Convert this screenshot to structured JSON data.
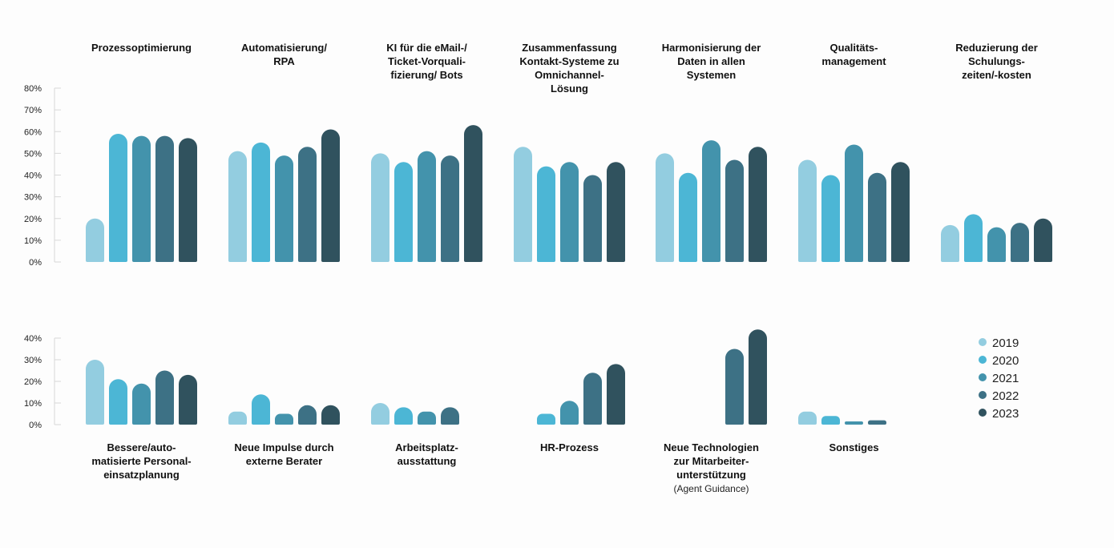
{
  "chart_data": [
    {
      "type": "bar",
      "series_labels": [
        "2019",
        "2020",
        "2021",
        "2022",
        "2023"
      ],
      "colors": [
        "#93cde0",
        "#4cb6d5",
        "#4393ac",
        "#3d7185",
        "#30525e"
      ],
      "ylim": [
        0,
        80
      ],
      "yticks": [
        0,
        10,
        20,
        30,
        40,
        50,
        60,
        70,
        80
      ],
      "ytick_labels": [
        "0%",
        "10%",
        "20%",
        "30%",
        "40%",
        "50%",
        "60%",
        "70%",
        "80%"
      ],
      "categories": [
        {
          "title": [
            "Prozessoptimierung"
          ],
          "values": [
            20,
            59,
            58,
            58,
            57
          ]
        },
        {
          "title": [
            "Automatisierung/",
            "RPA"
          ],
          "values": [
            51,
            55,
            49,
            53,
            61
          ]
        },
        {
          "title": [
            "KI für die eMail-/",
            "Ticket-Vorquali-",
            "fizierung/ Bots"
          ],
          "values": [
            50,
            46,
            51,
            49,
            63
          ]
        },
        {
          "title": [
            "Zusammenfassung",
            "Kontakt-Systeme zu",
            "Omnichannel-",
            "Lösung"
          ],
          "values": [
            53,
            44,
            46,
            40,
            46
          ]
        },
        {
          "title": [
            "Harmonisierung der",
            "Daten in allen",
            "Systemen"
          ],
          "values": [
            50,
            41,
            56,
            47,
            53
          ]
        },
        {
          "title": [
            "Qualitäts-",
            "management"
          ],
          "values": [
            47,
            40,
            54,
            41,
            46
          ]
        },
        {
          "title": [
            "Reduzierung der",
            "Schulungs-",
            "zeiten/-kosten"
          ],
          "values": [
            17,
            22,
            16,
            18,
            20
          ]
        }
      ]
    },
    {
      "type": "bar",
      "series_labels": [
        "2019",
        "2020",
        "2021",
        "2022",
        "2023"
      ],
      "colors": [
        "#93cde0",
        "#4cb6d5",
        "#4393ac",
        "#3d7185",
        "#30525e"
      ],
      "ylim": [
        0,
        40
      ],
      "yticks": [
        0,
        10,
        20,
        30,
        40
      ],
      "ytick_labels": [
        "0%",
        "10%",
        "20%",
        "30%",
        "40%"
      ],
      "categories": [
        {
          "title": [
            "Bessere/auto-",
            "matisierte Personal-",
            "einsatzplanung"
          ],
          "subtitle": "",
          "values": [
            30,
            21,
            19,
            25,
            23
          ]
        },
        {
          "title": [
            "Neue Impulse durch",
            "externe Berater"
          ],
          "subtitle": "",
          "values": [
            6,
            14,
            5,
            9,
            9
          ]
        },
        {
          "title": [
            "Arbeitsplatz-",
            "ausstattung"
          ],
          "subtitle": "",
          "values": [
            10,
            8,
            6,
            8,
            null
          ]
        },
        {
          "title": [
            "HR-Prozess"
          ],
          "subtitle": "",
          "values": [
            null,
            5,
            11,
            24,
            28
          ]
        },
        {
          "title": [
            "Neue Technologien",
            "zur Mitarbeiter-",
            "unterstützung"
          ],
          "subtitle": "(Agent Guidance)",
          "values": [
            null,
            null,
            null,
            35,
            44
          ]
        },
        {
          "title": [
            "Sonstiges"
          ],
          "subtitle": "",
          "values": [
            6,
            4,
            1.5,
            2,
            null
          ]
        }
      ]
    }
  ]
}
